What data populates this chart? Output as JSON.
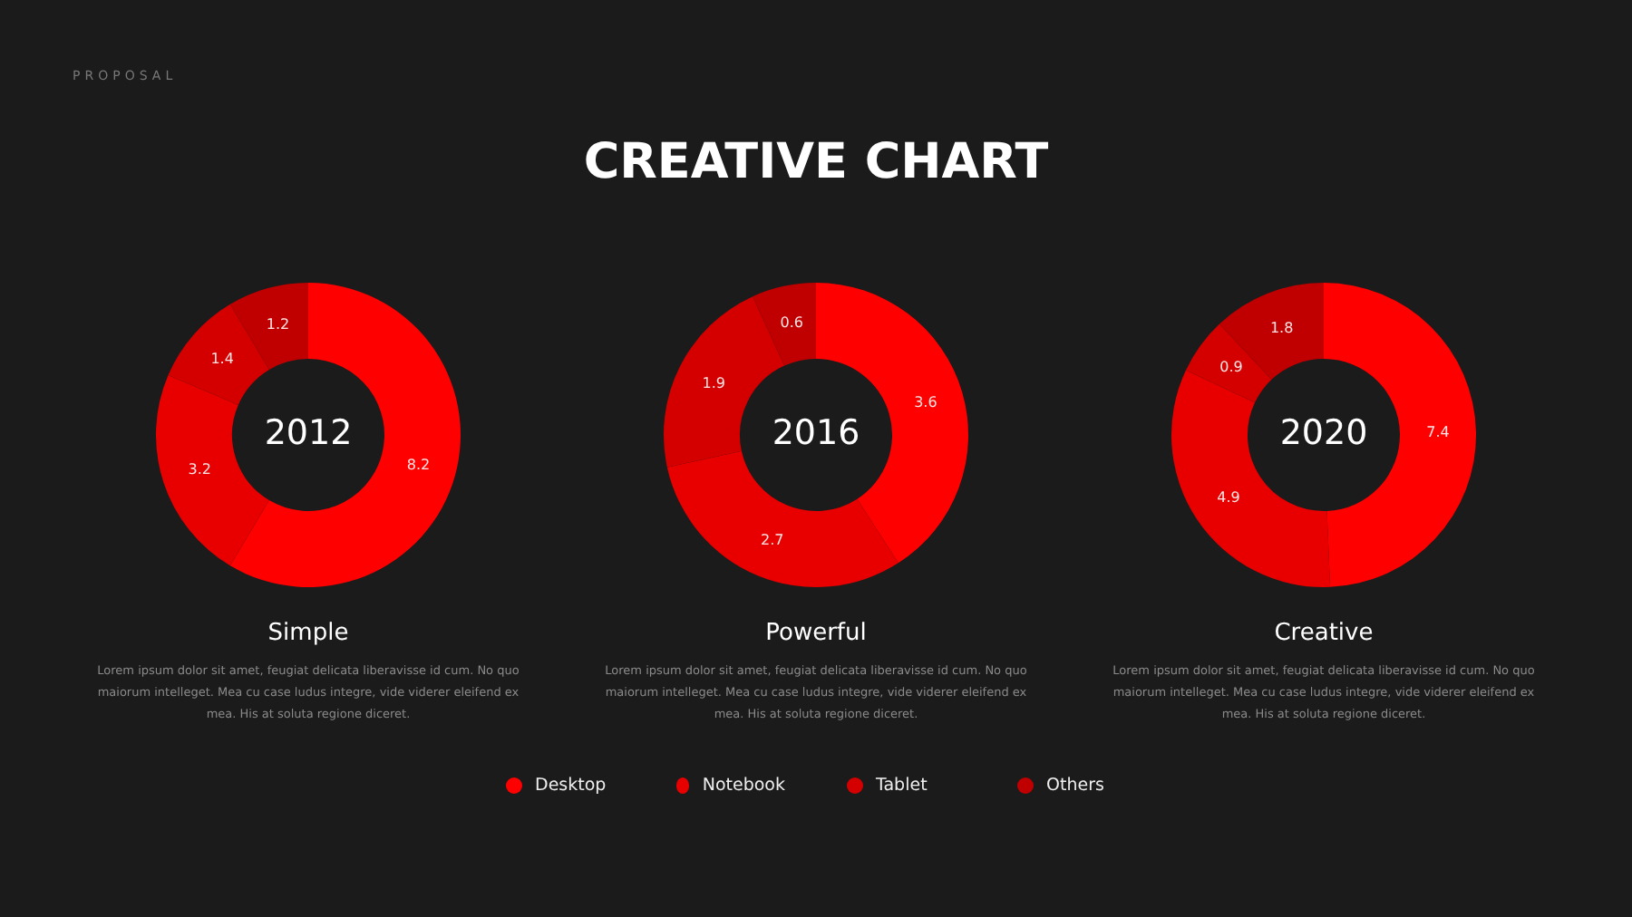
{
  "chart_data": [
    {
      "type": "donut",
      "title": "2012",
      "subtitle": "Simple",
      "categories": [
        "Desktop",
        "Notebook",
        "Tablet",
        "Others"
      ],
      "values": [
        8.2,
        3.2,
        1.4,
        1.2
      ],
      "colors": [
        "#ff0000",
        "#e80000",
        "#d40000",
        "#c00000"
      ],
      "data_labels": true,
      "legend": "bottom",
      "annotations": [
        "PROPOSAL",
        "CREATIVE CHART",
        "Lorem ipsum dolor sit amet, feugiat delicata liberavisse id cum. No quo maiorum intelleget. Mea cu case ludus integre, vide viderer eleifend ex mea. His at soluta regione diceret."
      ]
    },
    {
      "type": "donut",
      "title": "2016",
      "subtitle": "Powerful",
      "categories": [
        null,
        null,
        null,
        null
      ],
      "values": [
        3.6,
        2.7,
        1.9,
        0.6
      ],
      "colors": [
        "#ff0000",
        "#e80000",
        "#d40000",
        "#c00000"
      ],
      "data_labels": true,
      "annotations": [
        "Lorem ipsum dolor sit amet, feugiat delicata liberavisse id cum. No quo maiorum intelleget. Mea cu case ludus integre, vide viderer eleifend ex mea. His at soluta regione diceret."
      ]
    },
    {
      "type": "donut",
      "title": "2020",
      "subtitle": "Creative",
      "categories": [
        null,
        null,
        null,
        null
      ],
      "values": [
        7.4,
        4.9,
        0.9,
        1.8
      ],
      "colors": [
        "#ff0000",
        "#e80000",
        "#d40000",
        "#c00000"
      ],
      "data_labels": true,
      "annotations": [
        "Lorem ipsum dolor sit amet, feugiat delicata liberavisse id cum. No quo maiorum intelleget. Mea cu case ludus integre, vide viderer eleifend ex mea. His at soluta regione diceret."
      ]
    }
  ]
}
